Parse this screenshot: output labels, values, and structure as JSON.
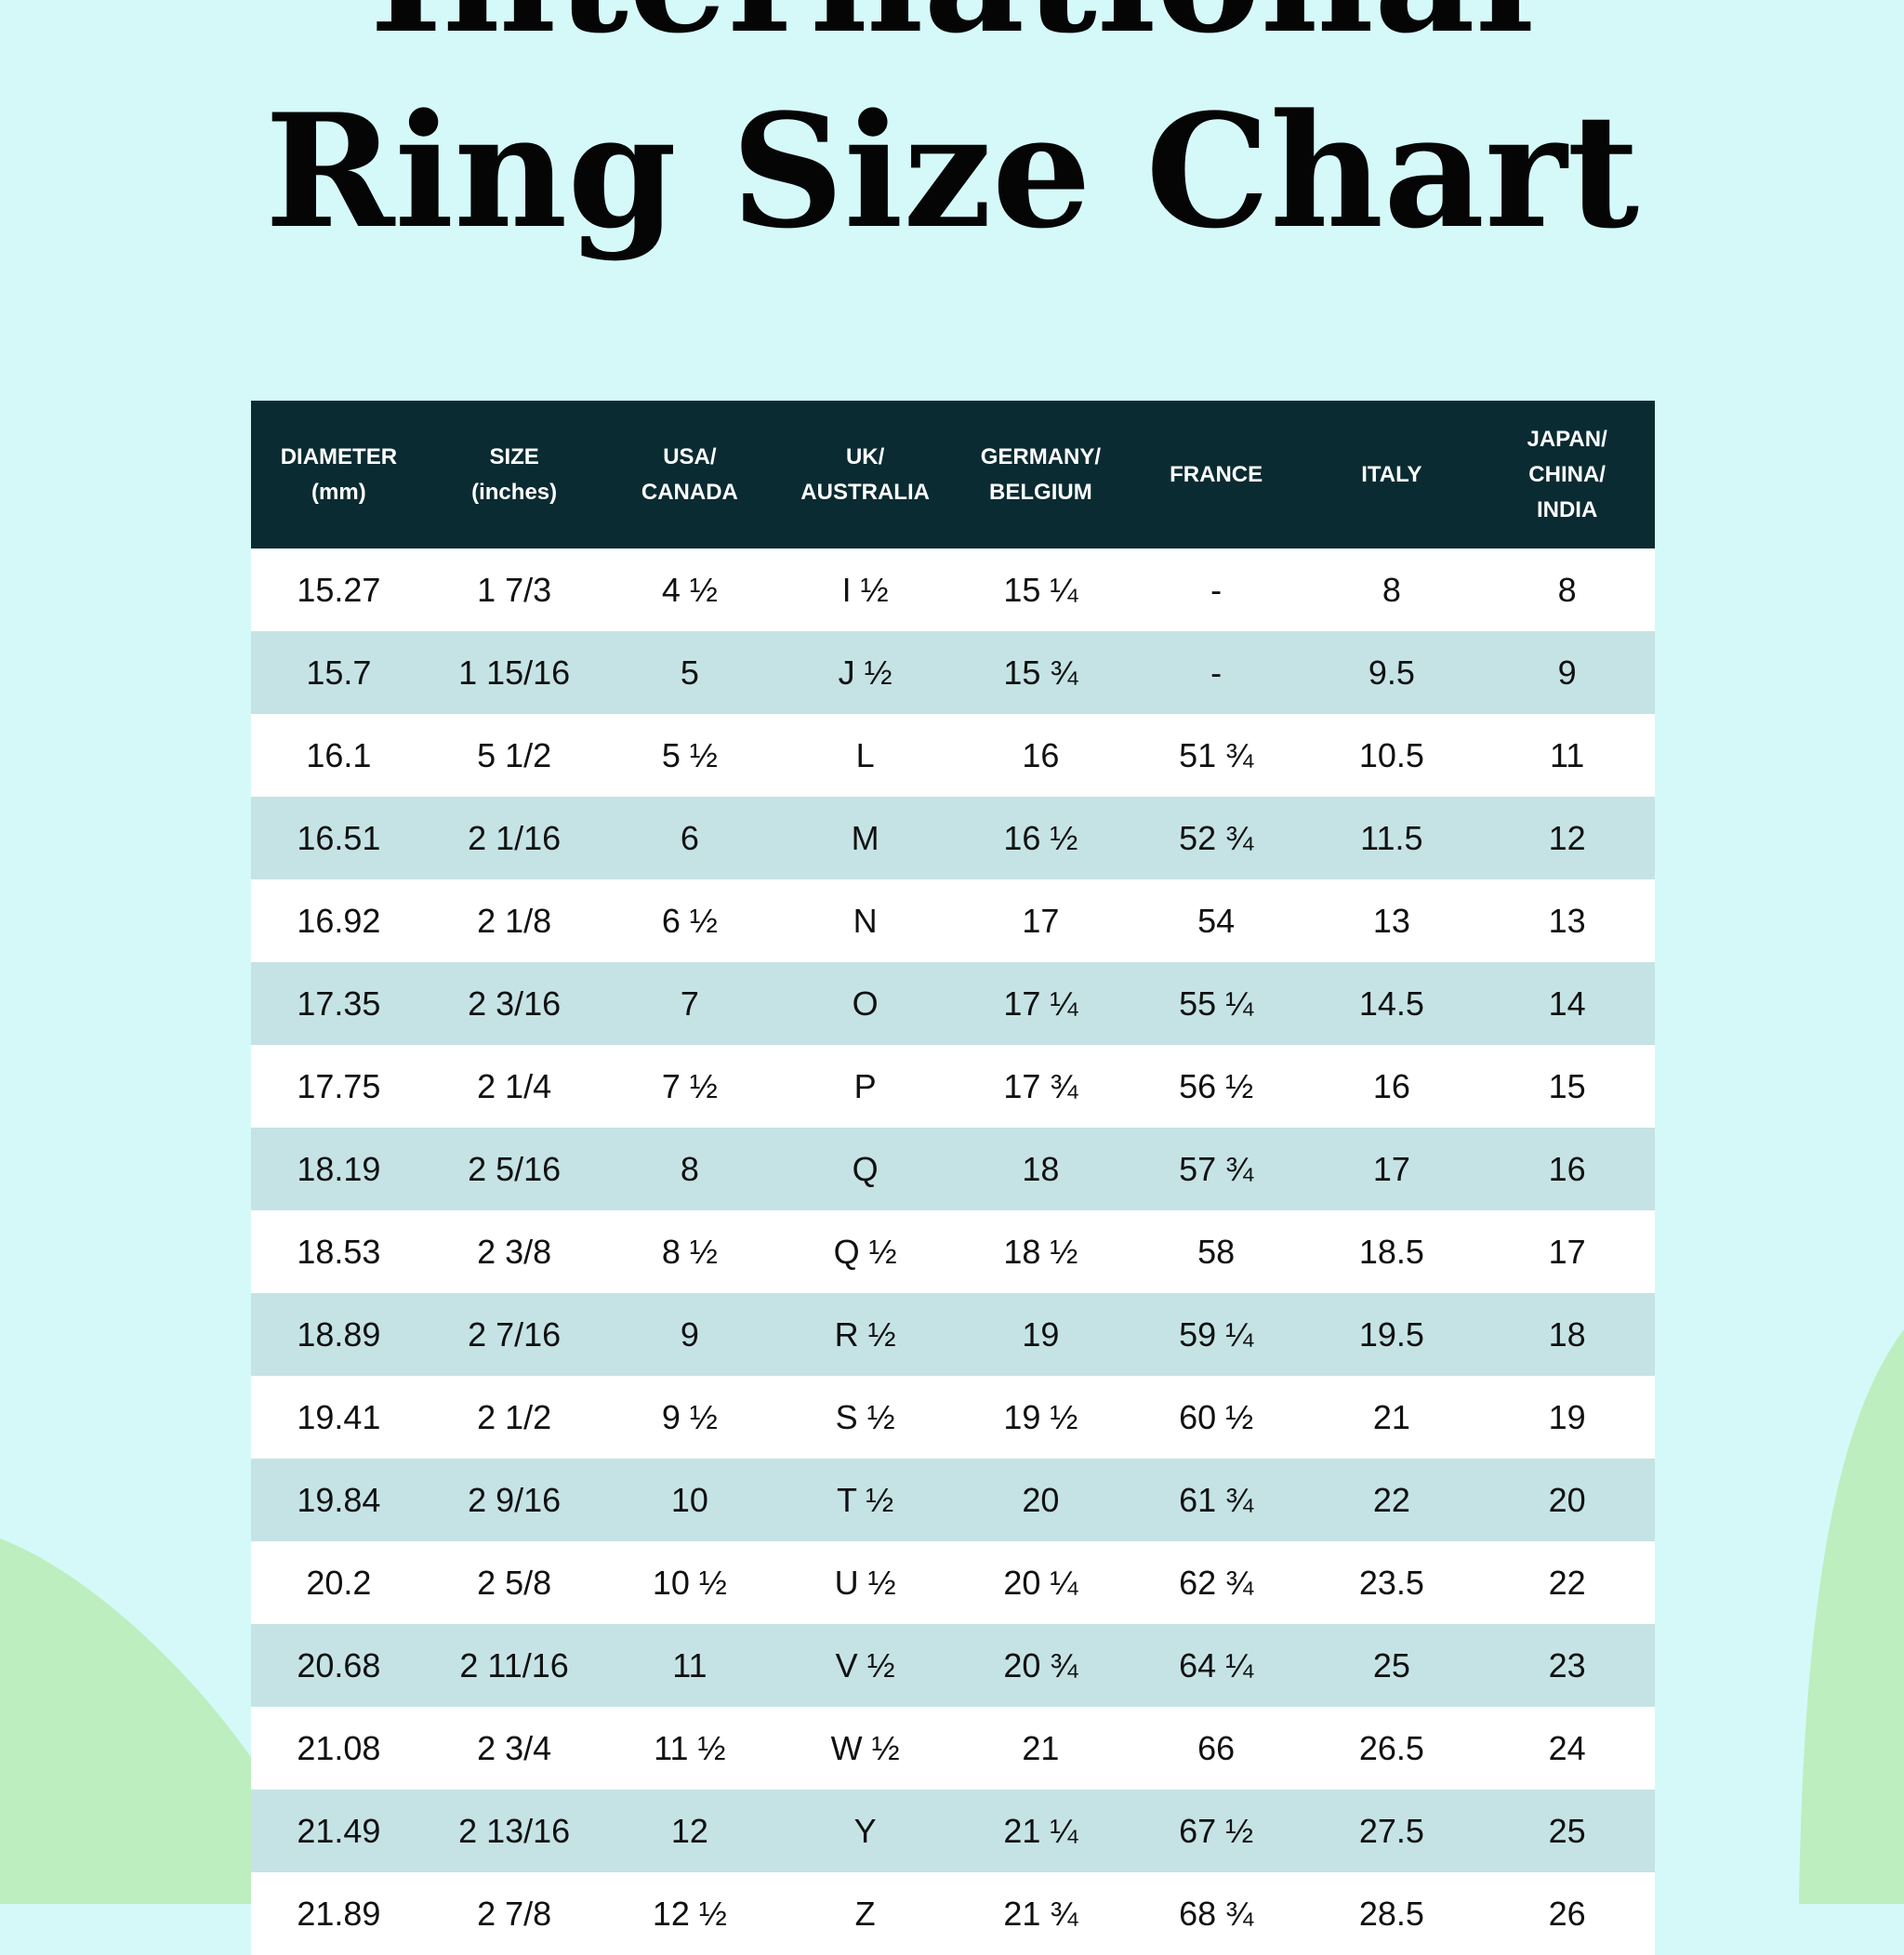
{
  "header": {
    "title_lines": [
      "International",
      "Ring Size Chart"
    ]
  },
  "table": {
    "columns": [
      [
        "DIAMETER",
        "(mm)"
      ],
      [
        "SIZE",
        "(inches)"
      ],
      [
        "USA/",
        "CANADA"
      ],
      [
        "UK/",
        "AUSTRALIA"
      ],
      [
        "GERMANY/",
        "BELGIUM"
      ],
      [
        "FRANCE"
      ],
      [
        "ITALY"
      ],
      [
        "JAPAN/",
        "CHINA/",
        "INDIA"
      ]
    ],
    "rows": [
      [
        "15.27",
        "1 7/3",
        "4 ½",
        "I ½",
        "15 ¼",
        "-",
        "8",
        "8"
      ],
      [
        "15.7",
        "1 15/16",
        "5",
        "J ½",
        "15 ¾",
        "-",
        "9.5",
        "9"
      ],
      [
        "16.1",
        "5 1/2",
        "5 ½",
        "L",
        "16",
        "51 ¾",
        "10.5",
        "11"
      ],
      [
        "16.51",
        "2 1/16",
        "6",
        "M",
        "16 ½",
        "52 ¾",
        "11.5",
        "12"
      ],
      [
        "16.92",
        "2 1/8",
        "6 ½",
        "N",
        "17",
        "54",
        "13",
        "13"
      ],
      [
        "17.35",
        "2 3/16",
        "7",
        "O",
        "17 ¼",
        "55 ¼",
        "14.5",
        "14"
      ],
      [
        "17.75",
        "2 1/4",
        "7 ½",
        "P",
        "17 ¾",
        "56 ½",
        "16",
        "15"
      ],
      [
        "18.19",
        "2 5/16",
        "8",
        "Q",
        "18",
        "57 ¾",
        "17",
        "16"
      ],
      [
        "18.53",
        "2 3/8",
        "8 ½",
        "Q ½",
        "18 ½",
        "58",
        "18.5",
        "17"
      ],
      [
        "18.89",
        "2 7/16",
        "9",
        "R ½",
        "19",
        "59 ¼",
        "19.5",
        "18"
      ],
      [
        "19.41",
        "2 1/2",
        "9 ½",
        "S ½",
        "19 ½",
        "60 ½",
        "21",
        "19"
      ],
      [
        "19.84",
        "2 9/16",
        "10",
        "T ½",
        "20",
        "61 ¾",
        "22",
        "20"
      ],
      [
        "20.2",
        "2 5/8",
        "10 ½",
        "U ½",
        "20 ¼",
        "62 ¾",
        "23.5",
        "22"
      ],
      [
        "20.68",
        "2 11/16",
        "11",
        "V ½",
        "20 ¾",
        "64 ¼",
        "25",
        "23"
      ],
      [
        "21.08",
        "2 3/4",
        "11 ½",
        "W ½",
        "21",
        "66",
        "26.5",
        "24"
      ],
      [
        "21.49",
        "2 13/16",
        "12",
        "Y",
        "21 ¼",
        "67 ½",
        "27.5",
        "25"
      ],
      [
        "21.89",
        "2 7/8",
        "12 ½",
        "Z",
        "21 ¾",
        "68 ¾",
        "28.5",
        "26"
      ]
    ]
  }
}
